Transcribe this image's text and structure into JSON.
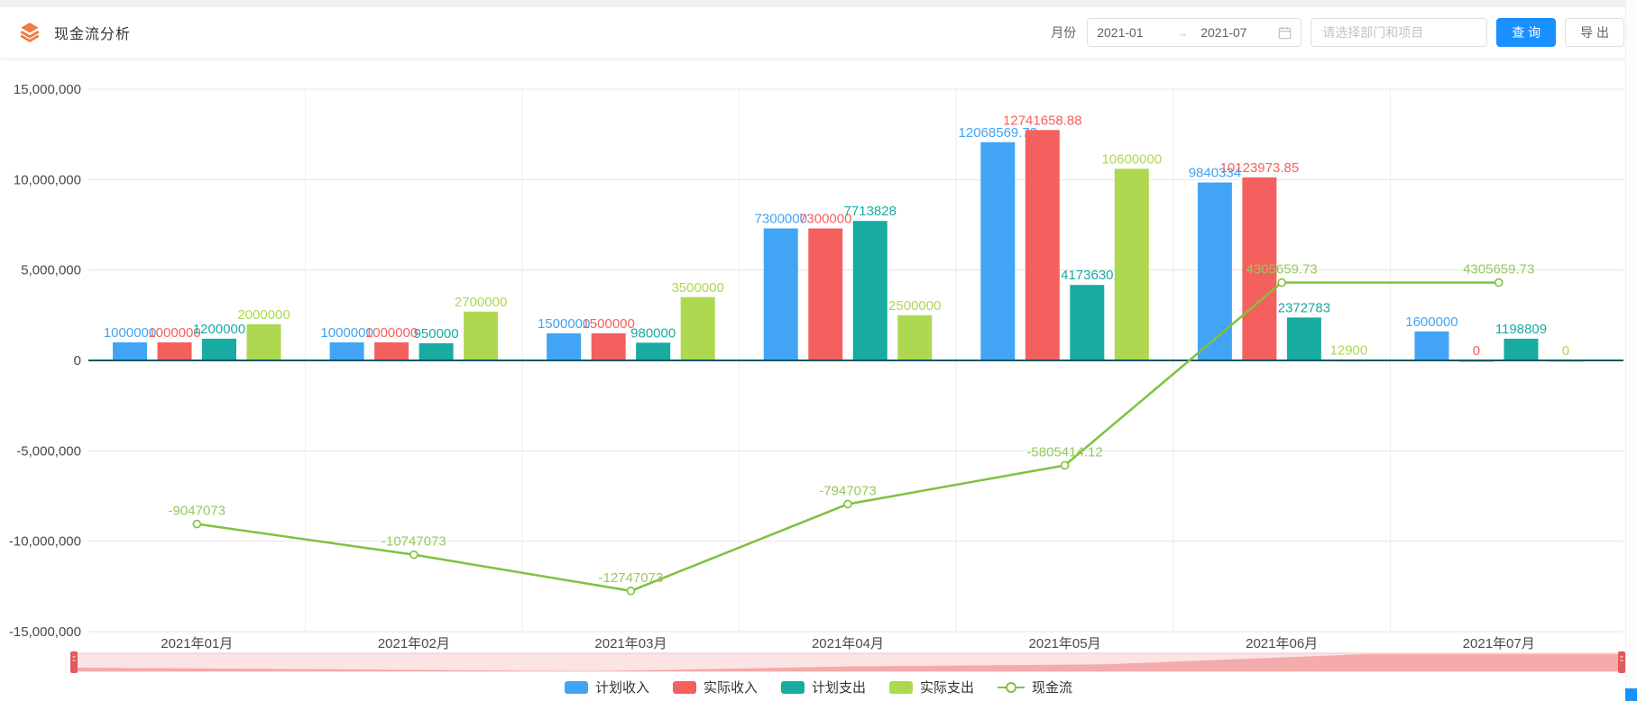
{
  "header": {
    "title": "现金流分析",
    "month_label": "月份",
    "date_start": "2021-01",
    "arrow": "→",
    "date_end": "2021-07",
    "select_placeholder": "请选择部门和项目",
    "query_label": "查 询",
    "export_label": "导 出"
  },
  "colors": {
    "accent_blue": "#1890ff",
    "axis_line": "#14565e",
    "grid_line": "#e4e4e4",
    "band_line": "#ededed",
    "axis_text": "#4a4a4a",
    "slider_track": "#fce4e4",
    "slider_border": "#f6c6c6",
    "slider_shadow": "#f19c9c",
    "slider_handle": "#e05a5a"
  },
  "chart_data": {
    "type": "bar+line",
    "title": "",
    "categories": [
      "2021年01月",
      "2021年02月",
      "2021年03月",
      "2021年04月",
      "2021年05月",
      "2021年06月",
      "2021年07月"
    ],
    "ylim": [
      -15000000,
      15000000
    ],
    "grid": true,
    "legend_position": "bottom",
    "y_ticks": [
      {
        "value": 15000000,
        "label": "15,000,000"
      },
      {
        "value": 10000000,
        "label": "10,000,000"
      },
      {
        "value": 5000000,
        "label": "5,000,000"
      },
      {
        "value": 0,
        "label": "0"
      },
      {
        "value": -5000000,
        "label": "-5,000,000"
      },
      {
        "value": -10000000,
        "label": "-10,000,000"
      },
      {
        "value": -15000000,
        "label": "-15,000,000"
      }
    ],
    "series": [
      {
        "name": "计划收入",
        "type": "bar",
        "color": "#42a4f4",
        "values": [
          1000000,
          1000000,
          1500000,
          7300000,
          12068569.73,
          9840334,
          1600000
        ],
        "labels": [
          "1000000",
          "1000000",
          "1500000",
          "7300000",
          "12068569.73",
          "9840334",
          "1600000"
        ]
      },
      {
        "name": "实际收入",
        "type": "bar",
        "color": "#f4605e",
        "values": [
          1000000,
          1000000,
          1500000,
          7300000,
          12741658.88,
          10123973.85,
          0
        ],
        "labels": [
          "1000000",
          "1000000",
          "1500000",
          "7300000",
          "12741658.88",
          "10123973.85",
          "0"
        ]
      },
      {
        "name": "计划支出",
        "type": "bar",
        "color": "#17aba2",
        "values": [
          1200000,
          950000,
          980000,
          7713828,
          4173630,
          2372783,
          1198809
        ],
        "labels": [
          "1200000",
          "950000",
          "980000",
          "7713828",
          "4173630",
          "2372783",
          "1198809"
        ]
      },
      {
        "name": "实际支出",
        "type": "bar",
        "color": "#add850",
        "values": [
          2000000,
          2700000,
          3500000,
          2500000,
          10600000,
          12900,
          0
        ],
        "labels": [
          "2000000",
          "2700000",
          "3500000",
          "2500000",
          "10600000",
          "12900",
          "0"
        ]
      },
      {
        "name": "现金流",
        "type": "line",
        "color": "#7ec23e",
        "label_color": "#96c95d",
        "values": [
          -9047073,
          -10747073,
          -12747073,
          -7947073,
          -5805414.12,
          4305659.73,
          4305659.73
        ],
        "labels": [
          "-9047073",
          "-10747073",
          "-12747073",
          "-7947073",
          "-5805414.12",
          "4305659.73",
          "4305659.73"
        ]
      }
    ]
  }
}
